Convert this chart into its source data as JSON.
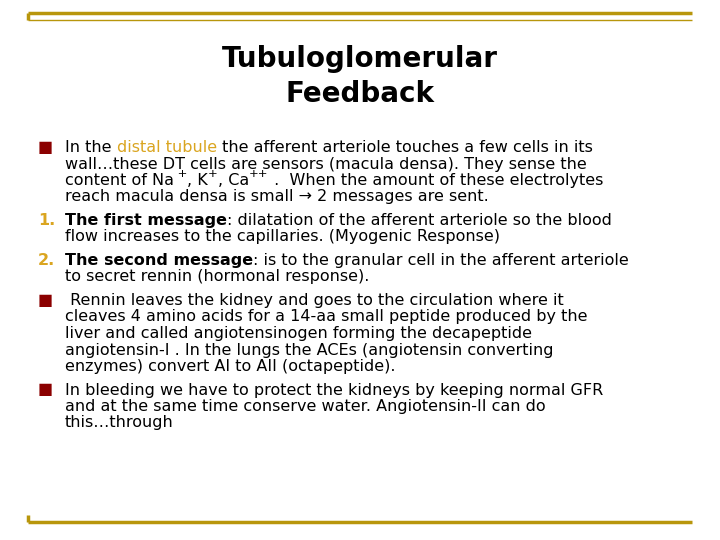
{
  "title": "Tubuloglomerular\nFeedback",
  "bg_color": "#ffffff",
  "border_color": "#B8960C",
  "title_fontsize": 20,
  "body_fontsize": 11.5,
  "bullet_marker": "■",
  "bullet_marker_color": "#8B0000",
  "number_color": "#DAA520",
  "distal_tubule_color": "#DAA520",
  "text_color": "#000000",
  "items": [
    {
      "type": "bullet",
      "label": "■",
      "label_color": "#8B0000",
      "segments": [
        [
          "In the ",
          false,
          "#000000"
        ],
        [
          "distal tubule",
          false,
          "#DAA520"
        ],
        [
          " the afferent arteriole touches a few cells in its wall…these DT cells are sensors (macula densa). They sense the content of Na",
          false,
          "#000000"
        ],
        [
          " +",
          false,
          "#000000"
        ],
        [
          ", K",
          false,
          "#000000"
        ],
        [
          "+",
          false,
          "#000000"
        ],
        [
          ", Ca",
          false,
          "#000000"
        ],
        [
          "++",
          false,
          "#000000"
        ],
        [
          " .  When the amount of these electrolytes reach macula densa is small → 2 messages are sent.",
          false,
          "#000000"
        ]
      ],
      "supers": [
        3,
        5,
        7
      ],
      "lines": [
        "In the distal tubule the afferent arteriole touches a few cells in its",
        "wall…these DT cells are sensors (macula densa). They sense the",
        "content of Na +, K+, Ca++ .  When the amount of these electrolytes",
        "reach macula densa is small → 2 messages are sent."
      ]
    },
    {
      "type": "numbered",
      "label": "1.",
      "label_color": "#DAA520",
      "lines": [
        "The first message: dilatation of the afferent arteriole so the blood",
        "flow increases to the capillaries. (Myogenic Response)"
      ],
      "bold_prefix": "The first message"
    },
    {
      "type": "numbered",
      "label": "2.",
      "label_color": "#DAA520",
      "lines": [
        "The second message: is to the granular cell in the afferent arteriole",
        "to secret rennin (hormonal response)."
      ],
      "bold_prefix": "The second message"
    },
    {
      "type": "bullet",
      "label": "■",
      "label_color": "#8B0000",
      "lines": [
        " Rennin leaves the kidney and goes to the circulation where it",
        "cleaves 4 amino acids for a 14-aa small peptide produced by the",
        "liver and called angiotensinogen forming the decapeptide",
        "angiotensin-I . In the lungs the ACEs (angiotensin converting",
        "enzymes) convert AI to AII (octapeptide)."
      ],
      "bold_prefix": ""
    },
    {
      "type": "bullet",
      "label": "■",
      "label_color": "#8B0000",
      "lines": [
        "In bleeding we have to protect the kidneys by keeping normal GFR",
        "and at the same time conserve water. Angiotensin-II can do",
        "this…through"
      ],
      "bold_prefix": ""
    }
  ]
}
